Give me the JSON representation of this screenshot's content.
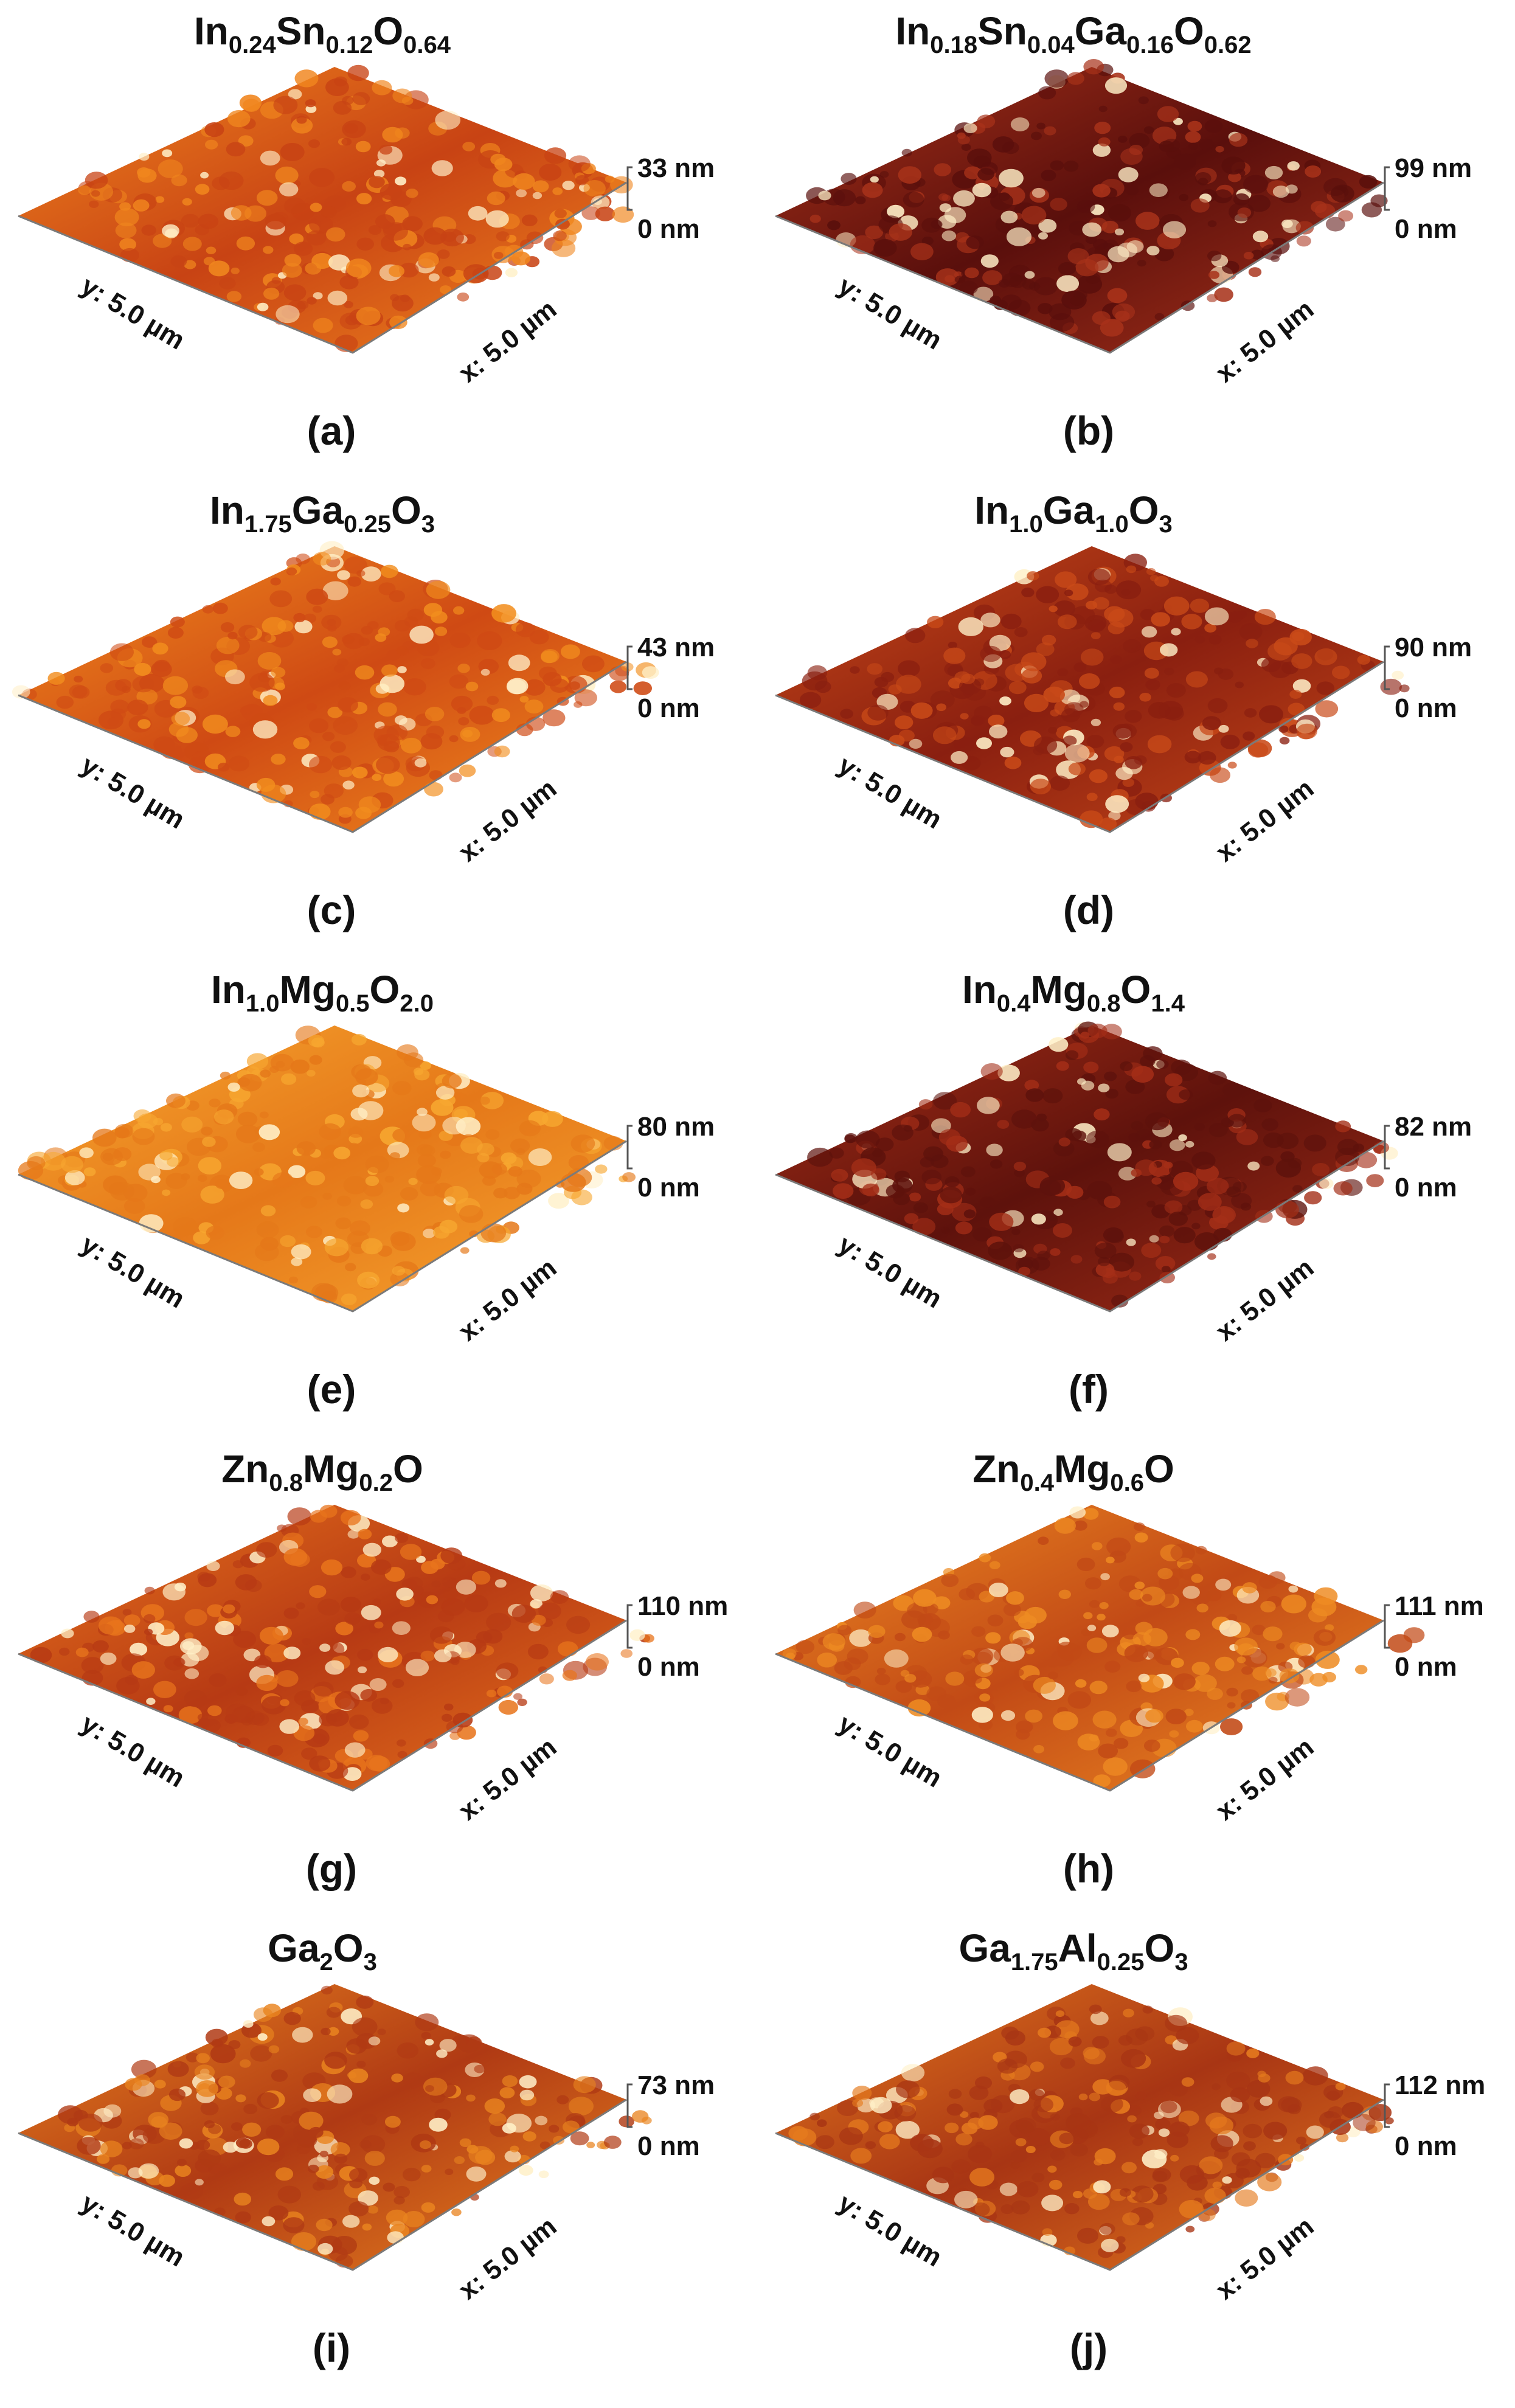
{
  "axes": {
    "y_label": "y: 5.0 µm",
    "x_label": "x: 5.0 µm",
    "z_min": "0 nm"
  },
  "panels": [
    {
      "letter": "(a)",
      "el": [
        {
          "t": "In",
          "s": "0.24"
        },
        {
          "t": "Sn",
          "s": "0.12"
        },
        {
          "t": "O",
          "s": "0.64"
        }
      ],
      "z_max": "33 nm",
      "colors": [
        "#c84314",
        "#f0861e"
      ]
    },
    {
      "letter": "(b)",
      "el": [
        {
          "t": "In",
          "s": "0.18"
        },
        {
          "t": "Sn",
          "s": "0.04"
        },
        {
          "t": "Ga",
          "s": "0.16"
        },
        {
          "t": "O",
          "s": "0.62"
        }
      ],
      "z_max": "99 nm",
      "colors": [
        "#5a0f0c",
        "#a8321a"
      ]
    },
    {
      "letter": "(c)",
      "el": [
        {
          "t": "In",
          "s": "1.75"
        },
        {
          "t": "Ga",
          "s": "0.25"
        },
        {
          "t": "O",
          "s": "3"
        }
      ],
      "z_max": "43 nm",
      "colors": [
        "#cf4a14",
        "#f28e1e"
      ]
    },
    {
      "letter": "(d)",
      "el": [
        {
          "t": "In",
          "s": "1.0"
        },
        {
          "t": "Ga",
          "s": "1.0"
        },
        {
          "t": "O",
          "s": "3"
        }
      ],
      "z_max": "90 nm",
      "colors": [
        "#8a1f10",
        "#c94a18"
      ]
    },
    {
      "letter": "(e)",
      "el": [
        {
          "t": "In",
          "s": "1.0"
        },
        {
          "t": "Mg",
          "s": "0.5"
        },
        {
          "t": "O",
          "s": "2.0"
        }
      ],
      "z_max": "80 nm",
      "colors": [
        "#e57819",
        "#f7a730"
      ]
    },
    {
      "letter": "(f)",
      "el": [
        {
          "t": "In",
          "s": "0.4"
        },
        {
          "t": "Mg",
          "s": "0.8"
        },
        {
          "t": "O",
          "s": "1.4"
        }
      ],
      "z_max": "82 nm",
      "colors": [
        "#5e120c",
        "#a42e17"
      ]
    },
    {
      "letter": "(g)",
      "el": [
        {
          "t": "Zn",
          "s": "0.8"
        },
        {
          "t": "Mg",
          "s": "0.2"
        },
        {
          "t": "O",
          "s": ""
        }
      ],
      "z_max": "110 nm",
      "colors": [
        "#b73a14",
        "#e8741c"
      ]
    },
    {
      "letter": "(h)",
      "el": [
        {
          "t": "Zn",
          "s": "0.4"
        },
        {
          "t": "Mg",
          "s": "0.6"
        },
        {
          "t": "O",
          "s": ""
        }
      ],
      "z_max": "111 nm",
      "colors": [
        "#c24a16",
        "#ee8b22"
      ]
    },
    {
      "letter": "(i)",
      "el": [
        {
          "t": "Ga",
          "s": "2"
        },
        {
          "t": "O",
          "s": "3"
        }
      ],
      "z_max": "73 nm",
      "colors": [
        "#b03a14",
        "#e9841f"
      ]
    },
    {
      "letter": "(j)",
      "el": [
        {
          "t": "Ga",
          "s": "1.75"
        },
        {
          "t": "Al",
          "s": "0.25"
        },
        {
          "t": "O",
          "s": "3"
        }
      ],
      "z_max": "112 nm",
      "colors": [
        "#a83514",
        "#e57a1e"
      ]
    }
  ]
}
